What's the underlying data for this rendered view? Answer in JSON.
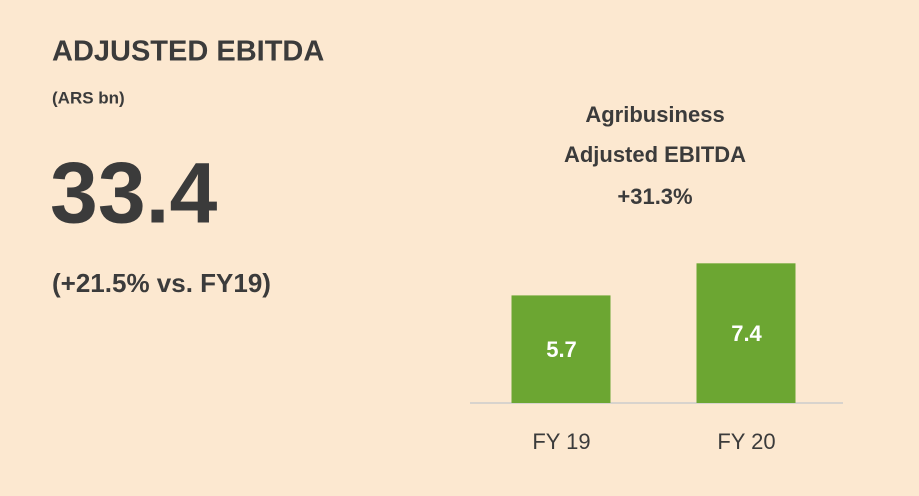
{
  "header": {
    "title": "ADJUSTED EBITDA",
    "unit": "(ARS bn)",
    "value": "33.4",
    "change": "(+21.5% vs. FY19)"
  },
  "chart_data": {
    "type": "bar",
    "title": [
      "Agribusiness",
      "Adjusted EBITDA"
    ],
    "annotation": "+31.3%",
    "categories": [
      "FY 19",
      "FY 20"
    ],
    "values": [
      5.7,
      7.4
    ],
    "color": "#6ca632",
    "ylim": [
      0,
      8
    ],
    "grid": false
  }
}
